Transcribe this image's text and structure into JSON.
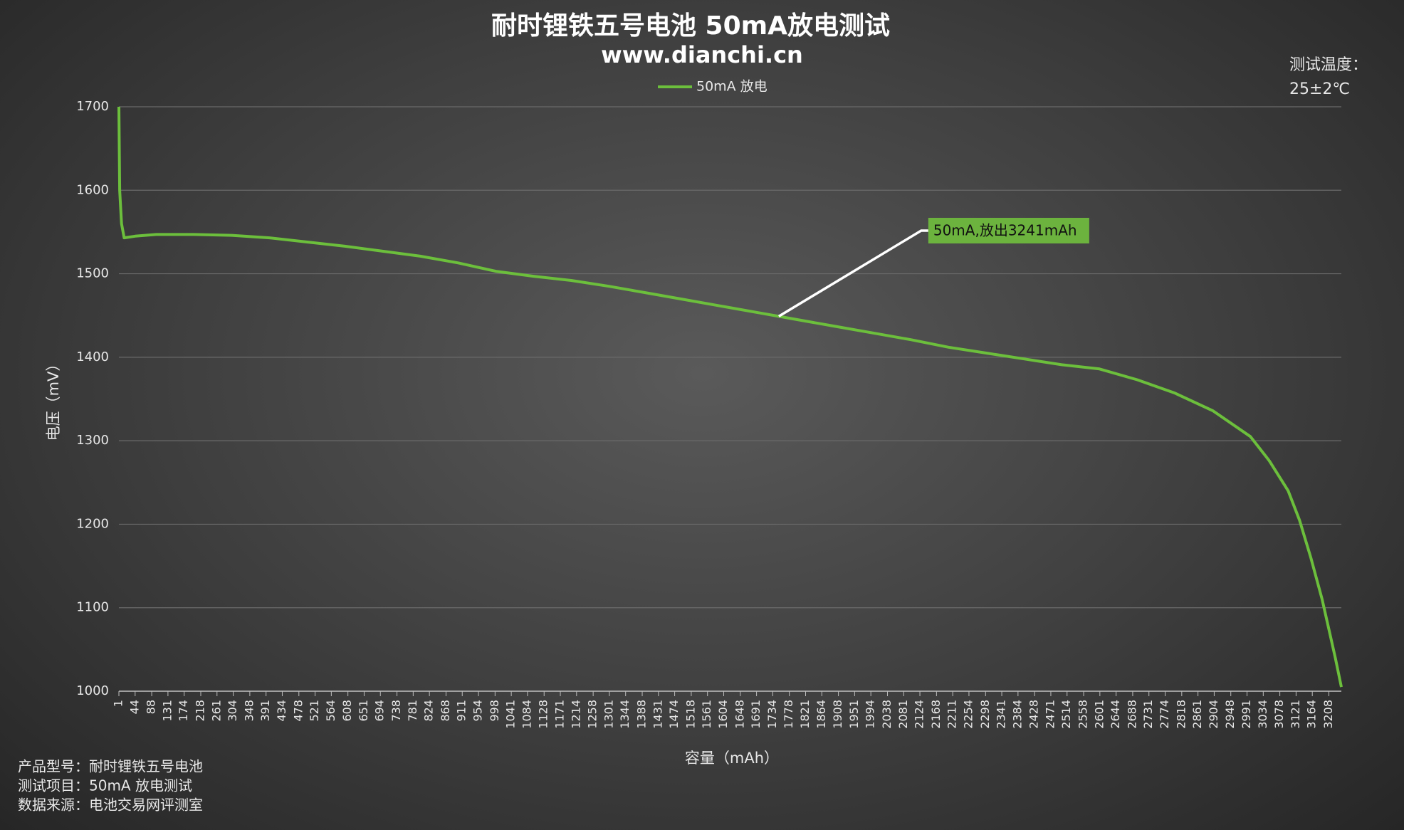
{
  "chart_data": {
    "type": "line",
    "title": "耐时锂铁五号电池 50mA放电测试",
    "subtitle": "www.dianchi.cn",
    "x_label": "容量（mAh）",
    "y_label": "电压（mV）",
    "temperature_label": "测试温度：",
    "temperature_value": "25±2℃",
    "footer": [
      "产品型号：耐时锂铁五号电池",
      "测试项目：50mA 放电测试",
      "数据来源：电池交易网评测室"
    ],
    "annotation": {
      "text": "50mA,放出3241mAh",
      "x": 1750,
      "y": 1449
    },
    "grid": true,
    "legend": "top",
    "xlim": [
      1,
      3241
    ],
    "ylim": [
      1000,
      1700
    ],
    "yticks": [
      1000,
      1100,
      1200,
      1300,
      1400,
      1500,
      1600,
      1700
    ],
    "xticks": [
      1,
      44,
      88,
      131,
      174,
      218,
      261,
      304,
      348,
      391,
      434,
      478,
      521,
      564,
      608,
      651,
      694,
      738,
      781,
      824,
      868,
      911,
      954,
      998,
      1041,
      1084,
      1128,
      1171,
      1214,
      1258,
      1301,
      1344,
      1388,
      1431,
      1474,
      1518,
      1561,
      1604,
      1648,
      1691,
      1734,
      1778,
      1821,
      1864,
      1908,
      1951,
      1994,
      2038,
      2081,
      2124,
      2168,
      2211,
      2254,
      2298,
      2341,
      2384,
      2428,
      2471,
      2514,
      2558,
      2601,
      2644,
      2688,
      2731,
      2774,
      2818,
      2861,
      2904,
      2948,
      2991,
      3034,
      3078,
      3121,
      3164,
      3208
    ],
    "x": [
      1,
      3,
      8,
      15,
      44,
      100,
      200,
      300,
      400,
      500,
      600,
      700,
      800,
      900,
      1000,
      1100,
      1200,
      1300,
      1400,
      1500,
      1600,
      1700,
      1750,
      1800,
      1900,
      2000,
      2100,
      2200,
      2300,
      2400,
      2500,
      2600,
      2700,
      2800,
      2900,
      3000,
      3050,
      3100,
      3130,
      3160,
      3190,
      3210,
      3225,
      3241
    ],
    "series": [
      {
        "name": "50mA 放电",
        "color": "#6cbf3c",
        "values": [
          1700,
          1600,
          1560,
          1543,
          1545,
          1547,
          1547,
          1546,
          1543,
          1538,
          1533,
          1527,
          1521,
          1513,
          1503,
          1497,
          1492,
          1485,
          1477,
          1469,
          1461,
          1453,
          1449,
          1445,
          1437,
          1429,
          1421,
          1412,
          1405,
          1398,
          1391,
          1386,
          1373,
          1357,
          1336,
          1305,
          1276,
          1240,
          1205,
          1160,
          1110,
          1070,
          1040,
          1005
        ]
      }
    ]
  }
}
